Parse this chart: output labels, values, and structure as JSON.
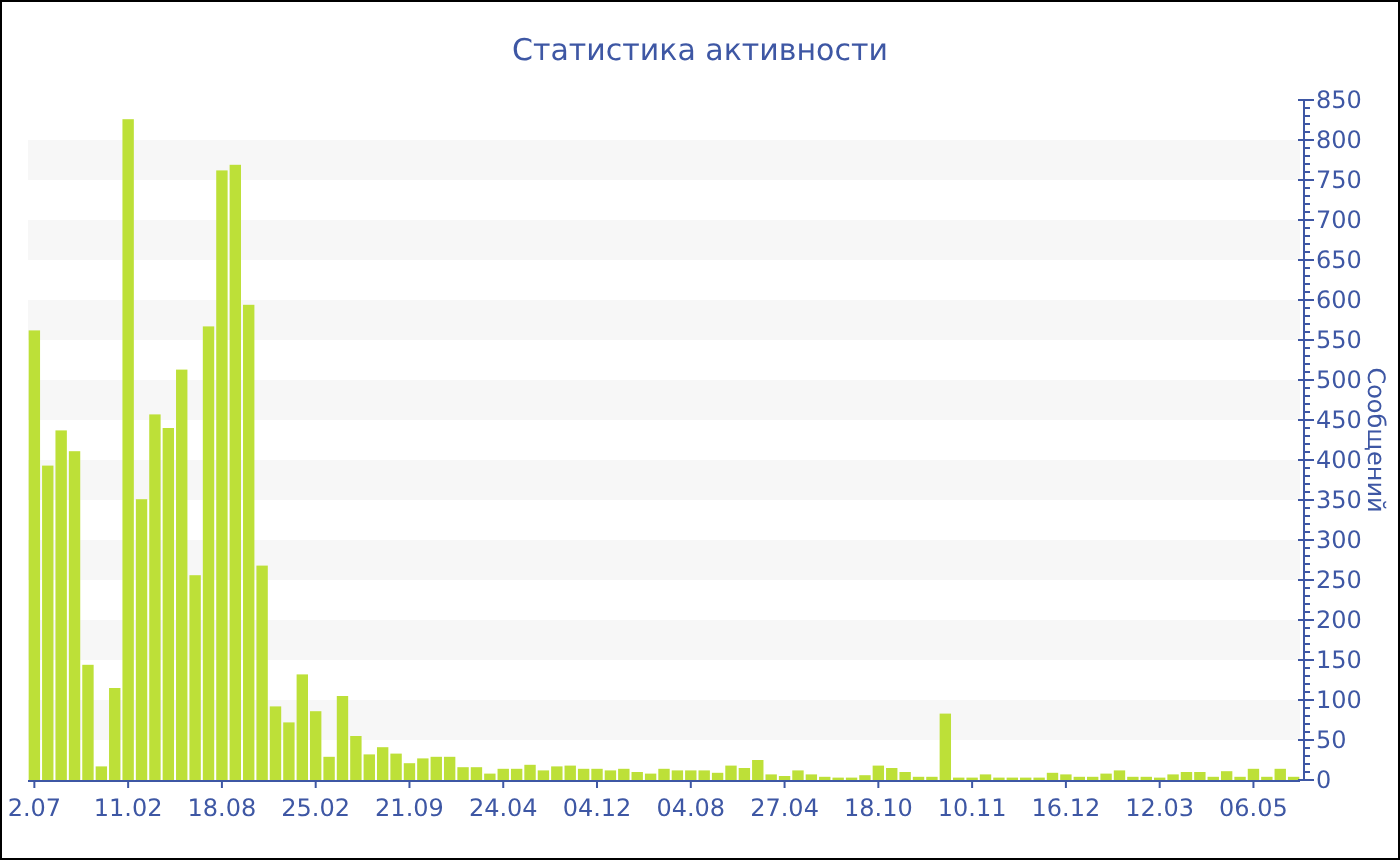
{
  "chart_data": {
    "type": "bar",
    "title": "Статистика активности",
    "ylabel": "Сообщений",
    "categories": [
      "2.07",
      null,
      null,
      null,
      null,
      null,
      null,
      "11.02",
      null,
      null,
      null,
      null,
      null,
      null,
      "18.08",
      null,
      null,
      null,
      null,
      null,
      null,
      "25.02",
      null,
      null,
      null,
      null,
      null,
      null,
      "21.09",
      null,
      null,
      null,
      null,
      null,
      null,
      "24.04",
      null,
      null,
      null,
      null,
      null,
      null,
      "04.12",
      null,
      null,
      null,
      null,
      null,
      null,
      "04.08",
      null,
      null,
      null,
      null,
      null,
      null,
      "27.04",
      null,
      null,
      null,
      null,
      null,
      null,
      "18.10",
      null,
      null,
      null,
      null,
      null,
      null,
      "10.11",
      null,
      null,
      null,
      null,
      null,
      null,
      "16.12",
      null,
      null,
      null,
      null,
      null,
      null,
      "12.03",
      null,
      null,
      null,
      null,
      null,
      null,
      "06.05",
      null,
      null,
      null
    ],
    "values": [
      562,
      393,
      437,
      411,
      144,
      17,
      115,
      826,
      351,
      457,
      440,
      513,
      256,
      567,
      762,
      769,
      594,
      268,
      92,
      72,
      132,
      86,
      29,
      105,
      55,
      32,
      41,
      33,
      21,
      27,
      29,
      29,
      16,
      16,
      8,
      14,
      14,
      19,
      12,
      17,
      18,
      14,
      14,
      12,
      14,
      10,
      8,
      14,
      12,
      12,
      12,
      9,
      18,
      15,
      25,
      7,
      5,
      12,
      7,
      4,
      3,
      3,
      6,
      18,
      15,
      10,
      4,
      4,
      83,
      3,
      3,
      7,
      3,
      3,
      3,
      3,
      9,
      7,
      4,
      4,
      8,
      12,
      4,
      4,
      3,
      7,
      10,
      10,
      4,
      11,
      4,
      14,
      4,
      14,
      4
    ],
    "color": "#bde038",
    "ylim": [
      0,
      850
    ],
    "yticks": [
      0,
      50,
      100,
      150,
      200,
      250,
      300,
      350,
      400,
      450,
      500,
      550,
      600,
      650,
      700,
      750,
      800,
      850
    ],
    "bands": [
      {
        "axis": "y",
        "from": 50,
        "to": 100,
        "color": "#f7f7f7"
      },
      {
        "axis": "y",
        "from": 150,
        "to": 200,
        "color": "#f7f7f7"
      },
      {
        "axis": "y",
        "from": 250,
        "to": 300,
        "color": "#f7f7f7"
      },
      {
        "axis": "y",
        "from": 350,
        "to": 400,
        "color": "#f7f7f7"
      },
      {
        "axis": "y",
        "from": 450,
        "to": 500,
        "color": "#f7f7f7"
      },
      {
        "axis": "y",
        "from": 550,
        "to": 600,
        "color": "#f7f7f7"
      },
      {
        "axis": "y",
        "from": 650,
        "to": 700,
        "color": "#f7f7f7"
      },
      {
        "axis": "y",
        "from": 750,
        "to": 800,
        "color": "#f7f7f7"
      }
    ]
  }
}
